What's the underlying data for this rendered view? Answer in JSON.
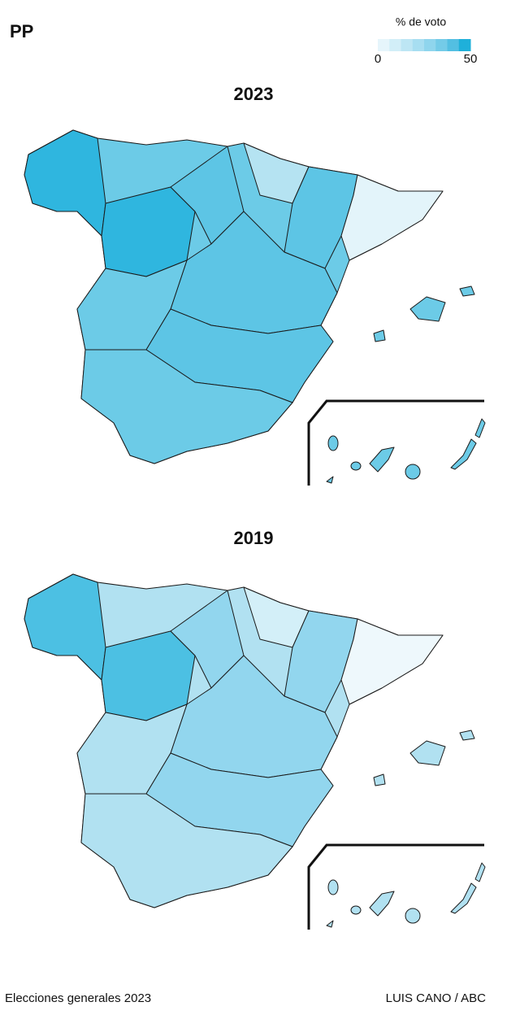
{
  "header": {
    "title": "PP"
  },
  "legend": {
    "title": "% de voto",
    "lim": [
      0,
      50
    ],
    "ticks": [
      0,
      50
    ],
    "colors": [
      "#e6f5fb",
      "#d2eef8",
      "#bde6f4",
      "#a7def1",
      "#8fd5ed",
      "#74cbe8",
      "#53bfe2",
      "#1fb0da"
    ]
  },
  "maps": [
    {
      "title": "2023"
    },
    {
      "title": "2019"
    }
  ],
  "footer": {
    "left": "Elecciones generales 2023",
    "right": "LUIS CANO / ABC"
  }
}
